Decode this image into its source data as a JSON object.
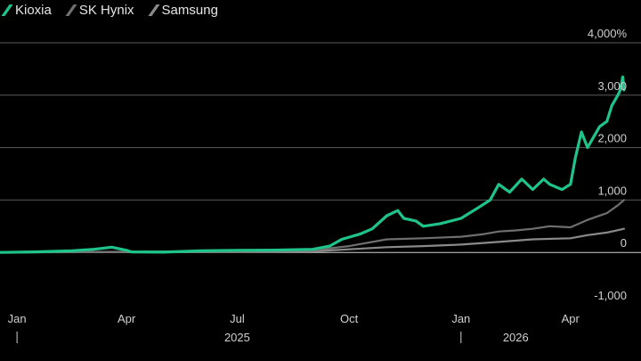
{
  "legend": [
    {
      "name": "Kioxia",
      "color": "#1fc48a"
    },
    {
      "name": "SK Hynix",
      "color": "#6f6f6f"
    },
    {
      "name": "Samsung",
      "color": "#8a8a8a"
    }
  ],
  "chart_data": {
    "type": "line",
    "title": "",
    "xlabel": "",
    "ylabel": "",
    "ylim": [
      -1000,
      4000
    ],
    "y_ticks": [
      {
        "value": 4000,
        "label": "4,000%"
      },
      {
        "value": 3000,
        "label": "3,000"
      },
      {
        "value": 2000,
        "label": "2,000"
      },
      {
        "value": 1000,
        "label": "1,000"
      },
      {
        "value": 0,
        "label": "0"
      },
      {
        "value": -1000,
        "label": "-1,000"
      }
    ],
    "xlim": [
      "2024-12-18",
      "2026-05-29"
    ],
    "x_ticks": [
      {
        "date": "2025-01-01",
        "label": "Jan"
      },
      {
        "date": "2025-04-01",
        "label": "Apr"
      },
      {
        "date": "2025-07-01",
        "label": "Jul"
      },
      {
        "date": "2025-10-01",
        "label": "Oct"
      },
      {
        "date": "2026-01-01",
        "label": "Jan"
      },
      {
        "date": "2026-04-01",
        "label": "Apr"
      }
    ],
    "year_labels": [
      {
        "date": "2025-07-01",
        "label": "2025"
      },
      {
        "date": "2026-02-15",
        "label": "2026"
      }
    ],
    "year_separators": [
      "2025-01-01",
      "2026-01-01"
    ],
    "grid": true,
    "legend_position": "top-left",
    "series": [
      {
        "name": "Kioxia",
        "color": "#1fc48a",
        "points": [
          [
            "2024-12-18",
            0
          ],
          [
            "2025-01-15",
            10
          ],
          [
            "2025-02-15",
            30
          ],
          [
            "2025-03-05",
            60
          ],
          [
            "2025-03-20",
            100
          ],
          [
            "2025-04-01",
            40
          ],
          [
            "2025-04-05",
            10
          ],
          [
            "2025-05-01",
            5
          ],
          [
            "2025-06-01",
            30
          ],
          [
            "2025-07-01",
            40
          ],
          [
            "2025-08-01",
            45
          ],
          [
            "2025-09-01",
            60
          ],
          [
            "2025-09-15",
            120
          ],
          [
            "2025-09-25",
            250
          ],
          [
            "2025-10-10",
            350
          ],
          [
            "2025-10-20",
            450
          ],
          [
            "2025-11-01",
            700
          ],
          [
            "2025-11-10",
            800
          ],
          [
            "2025-11-15",
            650
          ],
          [
            "2025-11-25",
            600
          ],
          [
            "2025-12-01",
            500
          ],
          [
            "2025-12-15",
            550
          ],
          [
            "2026-01-01",
            650
          ],
          [
            "2026-01-15",
            850
          ],
          [
            "2026-01-25",
            1000
          ],
          [
            "2026-02-01",
            1300
          ],
          [
            "2026-02-10",
            1150
          ],
          [
            "2026-02-20",
            1400
          ],
          [
            "2026-03-01",
            1200
          ],
          [
            "2026-03-10",
            1400
          ],
          [
            "2026-03-15",
            1300
          ],
          [
            "2026-03-25",
            1200
          ],
          [
            "2026-04-01",
            1300
          ],
          [
            "2026-04-05",
            1800
          ],
          [
            "2026-04-10",
            2300
          ],
          [
            "2026-04-15",
            2000
          ],
          [
            "2026-04-20",
            2200
          ],
          [
            "2026-04-25",
            2400
          ],
          [
            "2026-05-01",
            2500
          ],
          [
            "2026-05-05",
            2800
          ],
          [
            "2026-05-10",
            3000
          ],
          [
            "2026-05-12",
            3100
          ],
          [
            "2026-05-14",
            3350
          ],
          [
            "2026-05-15",
            3100
          ]
        ]
      },
      {
        "name": "SK Hynix",
        "color": "#6f6f6f",
        "points": [
          [
            "2024-12-18",
            0
          ],
          [
            "2025-03-01",
            10
          ],
          [
            "2025-06-01",
            20
          ],
          [
            "2025-09-01",
            40
          ],
          [
            "2025-10-01",
            120
          ],
          [
            "2025-11-01",
            250
          ],
          [
            "2025-12-01",
            270
          ],
          [
            "2026-01-01",
            300
          ],
          [
            "2026-01-20",
            350
          ],
          [
            "2026-02-01",
            400
          ],
          [
            "2026-02-15",
            420
          ],
          [
            "2026-03-01",
            450
          ],
          [
            "2026-03-15",
            500
          ],
          [
            "2026-04-01",
            480
          ],
          [
            "2026-04-15",
            620
          ],
          [
            "2026-05-01",
            750
          ],
          [
            "2026-05-10",
            900
          ],
          [
            "2026-05-15",
            1000
          ]
        ]
      },
      {
        "name": "Samsung",
        "color": "#8a8a8a",
        "points": [
          [
            "2024-12-18",
            0
          ],
          [
            "2025-03-01",
            5
          ],
          [
            "2025-06-01",
            10
          ],
          [
            "2025-09-01",
            20
          ],
          [
            "2025-10-01",
            60
          ],
          [
            "2025-11-01",
            100
          ],
          [
            "2025-12-01",
            120
          ],
          [
            "2026-01-01",
            150
          ],
          [
            "2026-02-01",
            200
          ],
          [
            "2026-03-01",
            250
          ],
          [
            "2026-04-01",
            270
          ],
          [
            "2026-04-15",
            330
          ],
          [
            "2026-05-01",
            380
          ],
          [
            "2026-05-15",
            450
          ]
        ]
      }
    ]
  }
}
